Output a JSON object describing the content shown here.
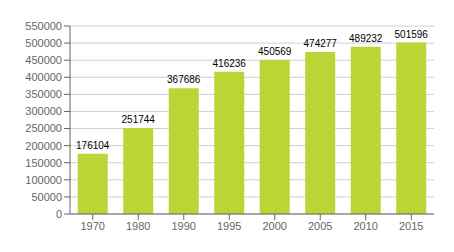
{
  "chart_data": {
    "type": "bar",
    "categories": [
      "1970",
      "1980",
      "1990",
      "1995",
      "2000",
      "2005",
      "2010",
      "2015"
    ],
    "values": [
      176104,
      251744,
      367686,
      416236,
      450569,
      474277,
      489232,
      501596
    ],
    "color": "#bcd435",
    "ylim": [
      0,
      550000
    ],
    "yticks": [
      0,
      50000,
      100000,
      150000,
      200000,
      250000,
      300000,
      350000,
      400000,
      450000,
      500000,
      550000
    ],
    "grid": true,
    "data_labels": true
  }
}
